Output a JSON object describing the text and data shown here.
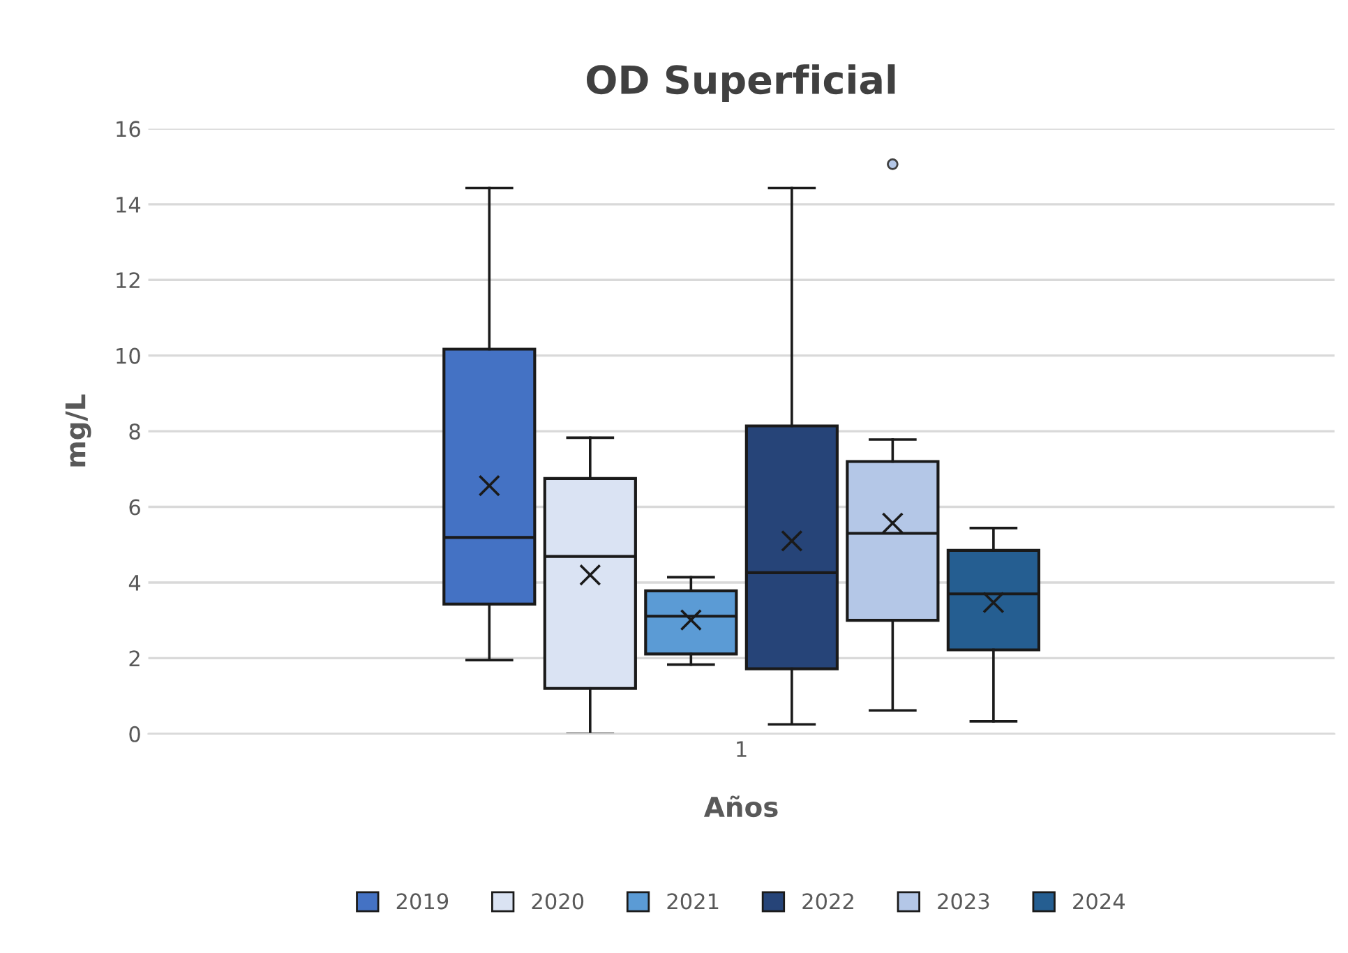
{
  "chart_data": {
    "type": "box",
    "title": "OD Superficial",
    "xlabel": "Años",
    "ylabel": "mg/L",
    "categories": [
      "1"
    ],
    "ylim": [
      0,
      16
    ],
    "yticks": [
      0,
      2,
      4,
      6,
      8,
      10,
      12,
      14,
      16
    ],
    "grid": "y",
    "legend": "bottom",
    "series": [
      {
        "name": "2019",
        "color": "#4472c4",
        "boxes": [
          {
            "low": 1.95,
            "q1": 3.43,
            "median": 5.19,
            "q3": 10.17,
            "high": 14.43,
            "mean": 6.56
          }
        ]
      },
      {
        "name": "2020",
        "color": "#dae3f3",
        "boxes": [
          {
            "low": 0,
            "q1": 1.2,
            "median": 4.69,
            "q3": 6.75,
            "high": 7.83,
            "mean": 4.2
          }
        ]
      },
      {
        "name": "2021",
        "color": "#5b9bd5",
        "boxes": [
          {
            "low": 1.83,
            "q1": 2.11,
            "median": 3.11,
            "q3": 3.78,
            "high": 4.14,
            "mean": 3.01
          }
        ]
      },
      {
        "name": "2022",
        "color": "#264478",
        "boxes": [
          {
            "low": 0.25,
            "q1": 1.72,
            "median": 4.26,
            "q3": 8.14,
            "high": 14.43,
            "mean": 5.1
          }
        ]
      },
      {
        "name": "2023",
        "color": "#b4c7e7",
        "boxes": [
          {
            "low": 0.62,
            "q1": 3.0,
            "median": 5.3,
            "q3": 7.2,
            "high": 7.78,
            "mean": 5.57,
            "outliers": [
              15.06
            ]
          }
        ]
      },
      {
        "name": "2024",
        "color": "#255e91",
        "boxes": [
          {
            "low": 0.33,
            "q1": 2.22,
            "median": 3.7,
            "q3": 4.85,
            "high": 5.44,
            "mean": 3.47
          }
        ]
      }
    ]
  }
}
